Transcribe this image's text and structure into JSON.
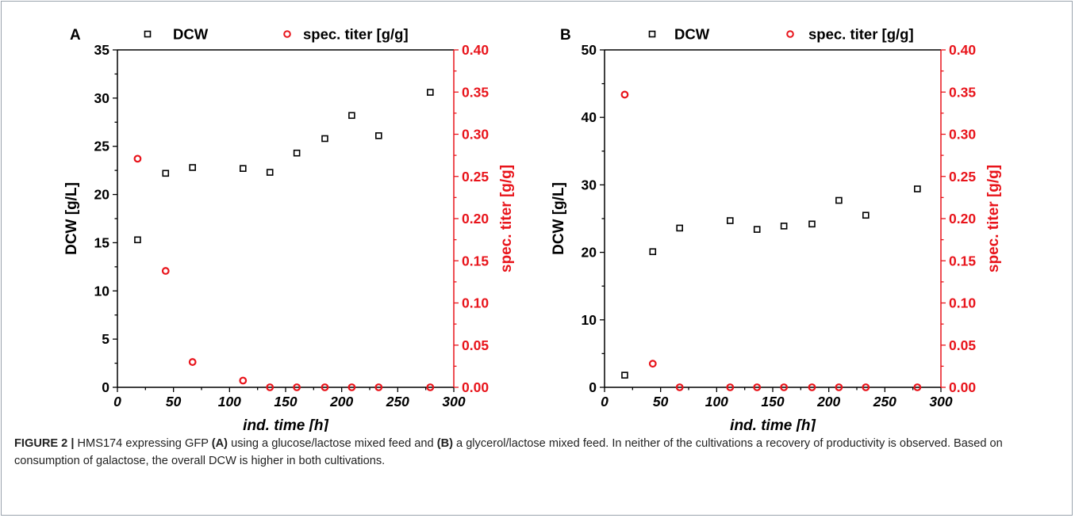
{
  "chart_data": [
    {
      "type": "scatter",
      "panel_label": "A",
      "xlabel": "ind. time [h]",
      "ylabel": "DCW [g/L]",
      "y2label": "spec. titer [g/g]",
      "xlim": [
        0,
        300
      ],
      "ylim": [
        0,
        35
      ],
      "y2lim": [
        0,
        0.4
      ],
      "xticks": [
        "0",
        "50",
        "100",
        "150",
        "200",
        "250",
        "300"
      ],
      "yticks": [
        "0",
        "5",
        "10",
        "15",
        "20",
        "25",
        "30",
        "35"
      ],
      "y2ticks": [
        "0.00",
        "0.05",
        "0.10",
        "0.15",
        "0.20",
        "0.25",
        "0.30",
        "0.35",
        "0.40"
      ],
      "legend_position": "top",
      "grid": false,
      "series": [
        {
          "name": "DCW",
          "axis": "left",
          "marker": "square",
          "color": "#000000",
          "x": [
            18,
            43,
            67,
            112,
            136,
            160,
            185,
            209,
            233,
            279
          ],
          "y": [
            15.3,
            22.2,
            22.8,
            22.7,
            22.3,
            24.3,
            25.8,
            28.2,
            26.1,
            30.6
          ]
        },
        {
          "name": "spec. titer [g/g]",
          "axis": "right",
          "marker": "circle",
          "color": "#e8141b",
          "x": [
            18,
            43,
            67,
            112,
            136,
            160,
            185,
            209,
            233,
            279
          ],
          "y": [
            0.271,
            0.138,
            0.03,
            0.008,
            0.0,
            0.0,
            0.0,
            0.0,
            0.0,
            0.0
          ]
        }
      ]
    },
    {
      "type": "scatter",
      "panel_label": "B",
      "xlabel": "ind. time [h]",
      "ylabel": "DCW [g/L]",
      "y2label": "spec. titer [g/g]",
      "xlim": [
        0,
        300
      ],
      "ylim": [
        0,
        50
      ],
      "y2lim": [
        0,
        0.4
      ],
      "xticks": [
        "0",
        "50",
        "100",
        "150",
        "200",
        "250",
        "300"
      ],
      "yticks": [
        "0",
        "10",
        "20",
        "30",
        "40",
        "50"
      ],
      "y2ticks": [
        "0.00",
        "0.05",
        "0.10",
        "0.15",
        "0.20",
        "0.25",
        "0.30",
        "0.35",
        "0.40"
      ],
      "legend_position": "top",
      "grid": false,
      "series": [
        {
          "name": "DCW",
          "axis": "left",
          "marker": "square",
          "color": "#000000",
          "x": [
            18,
            43,
            67,
            112,
            136,
            160,
            185,
            209,
            233,
            279
          ],
          "y": [
            1.8,
            20.1,
            23.6,
            24.7,
            23.4,
            23.9,
            24.2,
            27.7,
            25.5,
            29.4
          ]
        },
        {
          "name": "spec. titer [g/g]",
          "axis": "right",
          "marker": "circle",
          "color": "#e8141b",
          "x": [
            18,
            43,
            67,
            112,
            136,
            160,
            185,
            209,
            233,
            279
          ],
          "y": [
            0.347,
            0.028,
            0.0,
            0.0,
            0.0,
            0.0,
            0.0,
            0.0,
            0.0,
            0.0
          ]
        }
      ]
    }
  ],
  "caption": {
    "label": "FIGURE 2 |",
    "part1": " HMS174 expressing GFP ",
    "ref_a": "(A)",
    "part2": " using a glucose/lactose mixed feed and ",
    "ref_b": "(B)",
    "part3": " a glycerol/lactose mixed feed. In neither of the cultivations a recovery of productivity is observed. Based on consumption of galactose, the overall DCW is higher in both cultivations."
  }
}
